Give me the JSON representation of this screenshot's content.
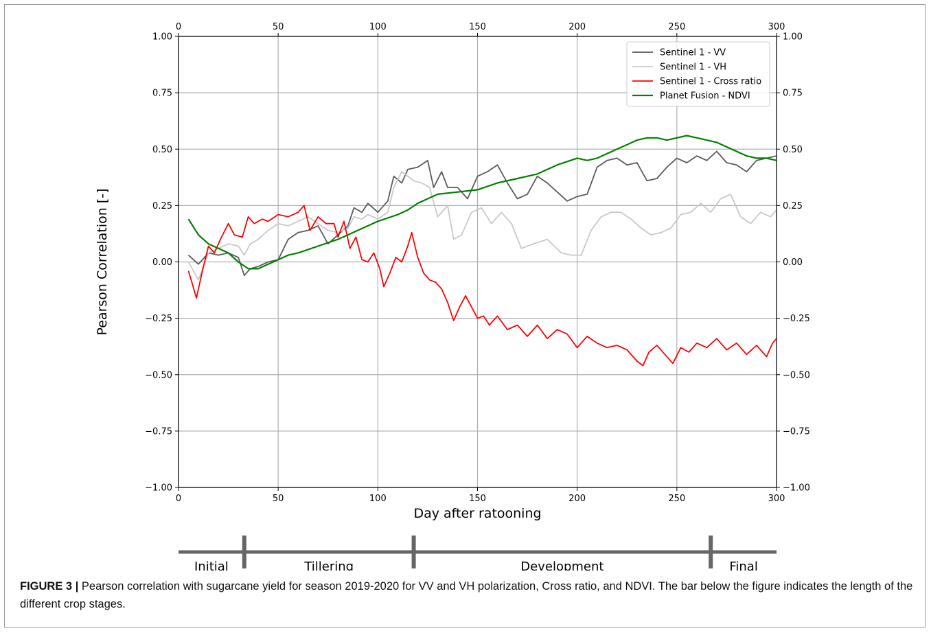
{
  "chart_data": {
    "type": "line",
    "xlabel": "Day after ratooning",
    "ylabel": "Pearson Correlation [-]",
    "xlim": [
      0,
      300
    ],
    "ylim": [
      -1.0,
      1.0
    ],
    "xticks": [
      0,
      50,
      100,
      150,
      200,
      250,
      300
    ],
    "yticks": [
      -1.0,
      -0.75,
      -0.5,
      -0.25,
      0.0,
      0.25,
      0.5,
      0.75,
      1.0
    ],
    "ytick_labels": [
      "−1.00",
      "−0.75",
      "−0.50",
      "−0.25",
      "0.00",
      "0.25",
      "0.50",
      "0.75",
      "1.00"
    ],
    "grid": true,
    "legend_position": "top-right",
    "series": [
      {
        "name": "Sentinel 1 - VV",
        "color": "#5a5a5a",
        "x": [
          5,
          10,
          15,
          20,
          25,
          30,
          33,
          36,
          40,
          45,
          50,
          55,
          60,
          65,
          70,
          75,
          80,
          85,
          88,
          92,
          95,
          100,
          105,
          108,
          112,
          115,
          120,
          125,
          128,
          132,
          135,
          140,
          145,
          150,
          155,
          160,
          165,
          170,
          175,
          180,
          185,
          190,
          195,
          200,
          205,
          210,
          215,
          220,
          225,
          230,
          235,
          240,
          245,
          250,
          255,
          260,
          265,
          270,
          275,
          280,
          285,
          290,
          295,
          300
        ],
        "y": [
          0.03,
          -0.01,
          0.04,
          0.03,
          0.04,
          0.02,
          -0.06,
          -0.03,
          -0.02,
          0.0,
          0.01,
          0.1,
          0.13,
          0.14,
          0.16,
          0.08,
          0.12,
          0.16,
          0.24,
          0.22,
          0.26,
          0.22,
          0.27,
          0.38,
          0.35,
          0.41,
          0.42,
          0.45,
          0.33,
          0.4,
          0.33,
          0.33,
          0.28,
          0.38,
          0.4,
          0.43,
          0.35,
          0.28,
          0.3,
          0.38,
          0.35,
          0.31,
          0.27,
          0.29,
          0.3,
          0.42,
          0.45,
          0.46,
          0.43,
          0.44,
          0.36,
          0.37,
          0.42,
          0.46,
          0.44,
          0.47,
          0.45,
          0.49,
          0.44,
          0.43,
          0.4,
          0.45,
          0.46,
          0.47
        ]
      },
      {
        "name": "Sentinel 1 - VH",
        "color": "#c8c8c8",
        "x": [
          5,
          10,
          15,
          20,
          25,
          30,
          33,
          36,
          40,
          45,
          50,
          55,
          60,
          65,
          70,
          75,
          80,
          85,
          88,
          92,
          95,
          100,
          105,
          108,
          112,
          115,
          118,
          122,
          126,
          130,
          135,
          138,
          142,
          147,
          152,
          157,
          162,
          167,
          172,
          178,
          185,
          192,
          197,
          202,
          207,
          212,
          217,
          222,
          227,
          232,
          237,
          242,
          247,
          252,
          257,
          262,
          267,
          272,
          277,
          282,
          287,
          292,
          297,
          300
        ],
        "y": [
          0.0,
          -0.08,
          0.04,
          0.06,
          0.08,
          0.07,
          0.03,
          0.08,
          0.1,
          0.14,
          0.17,
          0.16,
          0.18,
          0.2,
          0.17,
          0.14,
          0.13,
          0.15,
          0.2,
          0.19,
          0.21,
          0.19,
          0.22,
          0.33,
          0.4,
          0.38,
          0.36,
          0.35,
          0.33,
          0.2,
          0.25,
          0.1,
          0.12,
          0.22,
          0.24,
          0.17,
          0.22,
          0.17,
          0.06,
          0.08,
          0.1,
          0.04,
          0.03,
          0.03,
          0.14,
          0.2,
          0.22,
          0.22,
          0.19,
          0.15,
          0.12,
          0.13,
          0.15,
          0.21,
          0.22,
          0.26,
          0.22,
          0.28,
          0.3,
          0.2,
          0.17,
          0.22,
          0.2,
          0.23
        ]
      },
      {
        "name": "Sentinel 1 - Cross ratio",
        "color": "#ff0000",
        "x": [
          5,
          7,
          9,
          12,
          15,
          18,
          21,
          25,
          28,
          32,
          35,
          38,
          42,
          45,
          50,
          55,
          60,
          63,
          66,
          70,
          74,
          78,
          80,
          83,
          86,
          89,
          92,
          95,
          98,
          101,
          103,
          106,
          109,
          112,
          115,
          117,
          120,
          123,
          126,
          129,
          132,
          135,
          138,
          141,
          144,
          147,
          150,
          153,
          156,
          160,
          165,
          170,
          175,
          180,
          185,
          190,
          195,
          200,
          205,
          210,
          215,
          220,
          225,
          230,
          233,
          236,
          240,
          244,
          248,
          252,
          256,
          260,
          265,
          270,
          275,
          280,
          285,
          290,
          295,
          298,
          300
        ],
        "y": [
          -0.04,
          -0.1,
          -0.16,
          -0.04,
          0.07,
          0.04,
          0.1,
          0.17,
          0.12,
          0.11,
          0.2,
          0.17,
          0.19,
          0.18,
          0.21,
          0.2,
          0.22,
          0.25,
          0.14,
          0.2,
          0.17,
          0.17,
          0.11,
          0.18,
          0.06,
          0.11,
          0.01,
          0.0,
          0.04,
          -0.03,
          -0.11,
          -0.05,
          0.02,
          0.0,
          0.07,
          0.13,
          0.02,
          -0.05,
          -0.08,
          -0.09,
          -0.12,
          -0.18,
          -0.26,
          -0.2,
          -0.15,
          -0.2,
          -0.25,
          -0.24,
          -0.28,
          -0.24,
          -0.3,
          -0.28,
          -0.33,
          -0.28,
          -0.34,
          -0.3,
          -0.32,
          -0.38,
          -0.33,
          -0.36,
          -0.38,
          -0.37,
          -0.39,
          -0.44,
          -0.46,
          -0.4,
          -0.37,
          -0.41,
          -0.45,
          -0.38,
          -0.4,
          -0.36,
          -0.38,
          -0.34,
          -0.39,
          -0.36,
          -0.41,
          -0.37,
          -0.42,
          -0.36,
          -0.34
        ]
      },
      {
        "name": "Planet Fusion - NDVI",
        "color": "#008000",
        "x": [
          5,
          10,
          15,
          20,
          25,
          30,
          35,
          40,
          45,
          50,
          55,
          60,
          70,
          80,
          90,
          100,
          110,
          115,
          120,
          125,
          130,
          140,
          150,
          160,
          170,
          180,
          190,
          200,
          205,
          210,
          215,
          220,
          225,
          230,
          235,
          240,
          245,
          250,
          255,
          260,
          265,
          270,
          275,
          280,
          285,
          290,
          295,
          300
        ],
        "y": [
          0.19,
          0.12,
          0.08,
          0.06,
          0.04,
          0.0,
          -0.03,
          -0.03,
          -0.01,
          0.01,
          0.03,
          0.04,
          0.07,
          0.1,
          0.14,
          0.18,
          0.21,
          0.23,
          0.26,
          0.28,
          0.3,
          0.31,
          0.32,
          0.35,
          0.37,
          0.39,
          0.43,
          0.46,
          0.45,
          0.46,
          0.48,
          0.5,
          0.52,
          0.54,
          0.55,
          0.55,
          0.54,
          0.55,
          0.56,
          0.55,
          0.54,
          0.53,
          0.51,
          0.49,
          0.47,
          0.46,
          0.46,
          0.45
        ]
      }
    ]
  },
  "stages": {
    "boundaries": [
      0,
      33,
      118,
      267,
      300
    ],
    "labels": [
      "Initial",
      "Tillering",
      "Development",
      "Final"
    ]
  },
  "caption": {
    "figure_label": "FIGURE 3",
    "separator": "|",
    "text": "Pearson correlation with sugarcane yield for season 2019-2020 for VV and VH polarization, Cross ratio, and NDVI. The bar below the figure indicates the length of the different crop stages."
  }
}
